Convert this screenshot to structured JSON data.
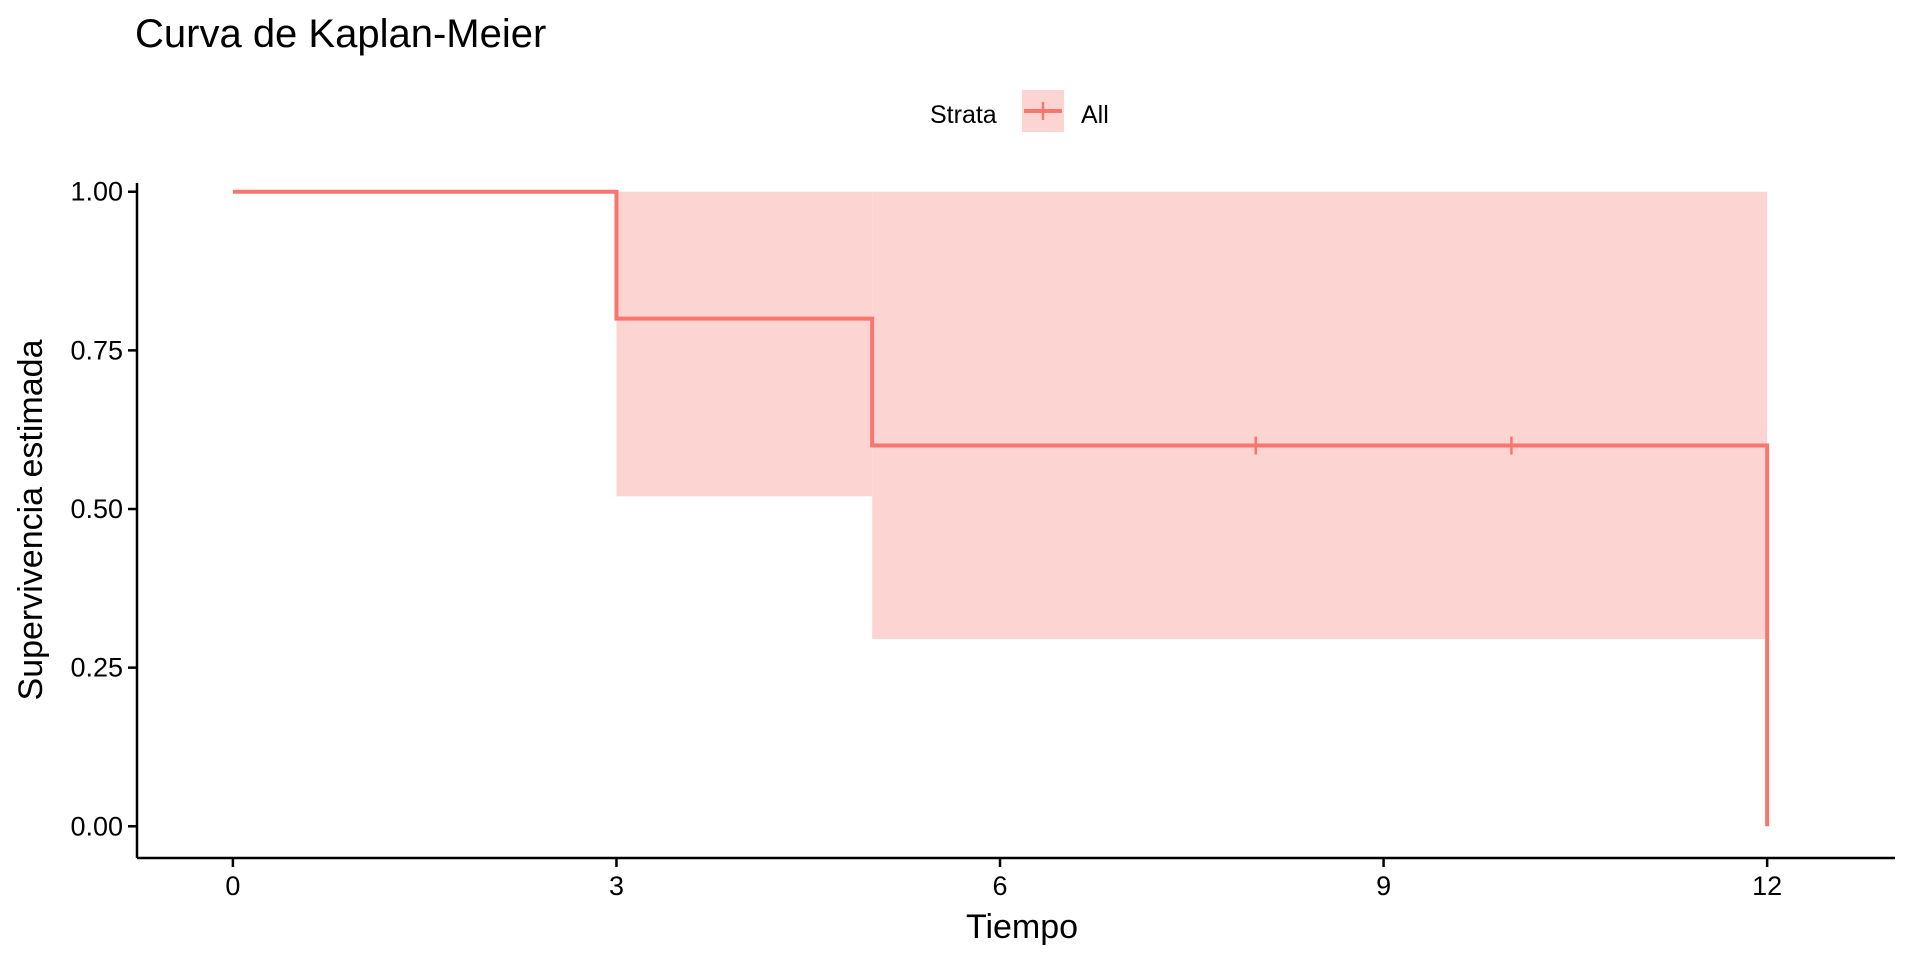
{
  "chart_data": {
    "type": "line",
    "title": "Curva de Kaplan-Meier",
    "xlabel": "Tiempo",
    "ylabel": "Supervivencia estimada",
    "xlim": [
      -0.75,
      13.0
    ],
    "ylim": [
      -0.05,
      1.05
    ],
    "xticks": [
      0,
      3,
      6,
      9,
      12
    ],
    "xtick_labels": [
      "0",
      "3",
      "6",
      "9",
      "12"
    ],
    "yticks": [
      0,
      0.25,
      0.5,
      0.75,
      1.0
    ],
    "ytick_labels": [
      "0.00",
      "0.25",
      "0.50",
      "0.75",
      "1.00"
    ],
    "grid": false,
    "legend": {
      "title": "Strata",
      "position": "top",
      "entries": [
        "All"
      ]
    },
    "series": [
      {
        "name": "All",
        "color": "#F8766D",
        "fill_color": "#FCD5D3",
        "step_x": [
          0,
          3,
          5,
          12,
          12
        ],
        "step_y": [
          1.0,
          0.8,
          0.6,
          0.6,
          0.0
        ],
        "ci_upper": [
          1.0,
          1.0,
          1.0,
          1.0
        ],
        "ci_lower": [
          1.0,
          0.52,
          0.295,
          0.295
        ],
        "ci_x": [
          0,
          3,
          5,
          12
        ],
        "censor_x": [
          8,
          10
        ],
        "censor_y": [
          0.6,
          0.6
        ]
      }
    ]
  }
}
